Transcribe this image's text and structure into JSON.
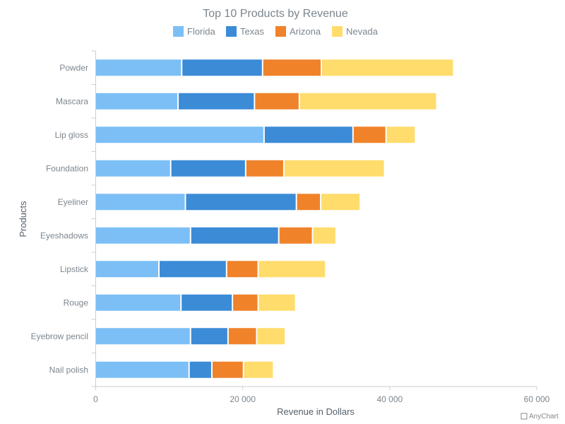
{
  "chart_data": {
    "type": "bar",
    "orientation": "horizontal",
    "stacked": true,
    "title": "Top 10 Products by Revenue",
    "xlabel": "Revenue in Dollars",
    "ylabel": "Products",
    "xlim": [
      0,
      60000
    ],
    "x_ticks": [
      "0",
      "20 000",
      "40 000",
      "60 000"
    ],
    "x_tick_values": [
      0,
      20000,
      40000,
      60000
    ],
    "grid": false,
    "legend_position": "top",
    "categories": [
      "Powder",
      "Mascara",
      "Lip gloss",
      "Foundation",
      "Eyeliner",
      "Eyeshadows",
      "Lipstick",
      "Rouge",
      "Eyebrow pencil",
      "Nail polish"
    ],
    "series": [
      {
        "name": "Florida",
        "color": "#7cbff6",
        "values": [
          11700,
          11200,
          22900,
          10200,
          12200,
          12900,
          8600,
          11600,
          12900,
          12700
        ]
      },
      {
        "name": "Texas",
        "color": "#3b8bd7",
        "values": [
          11000,
          10400,
          12100,
          10200,
          15100,
          12000,
          9200,
          7000,
          5100,
          3100
        ]
      },
      {
        "name": "Arizona",
        "color": "#f0822a",
        "values": [
          8000,
          6100,
          4500,
          5200,
          3300,
          4600,
          4300,
          3500,
          3900,
          4300
        ]
      },
      {
        "name": "Nevada",
        "color": "#ffdc6b",
        "values": [
          18000,
          18700,
          4000,
          13700,
          5400,
          3200,
          9200,
          5100,
          3900,
          4100
        ]
      }
    ]
  },
  "credit": "AnyChart"
}
